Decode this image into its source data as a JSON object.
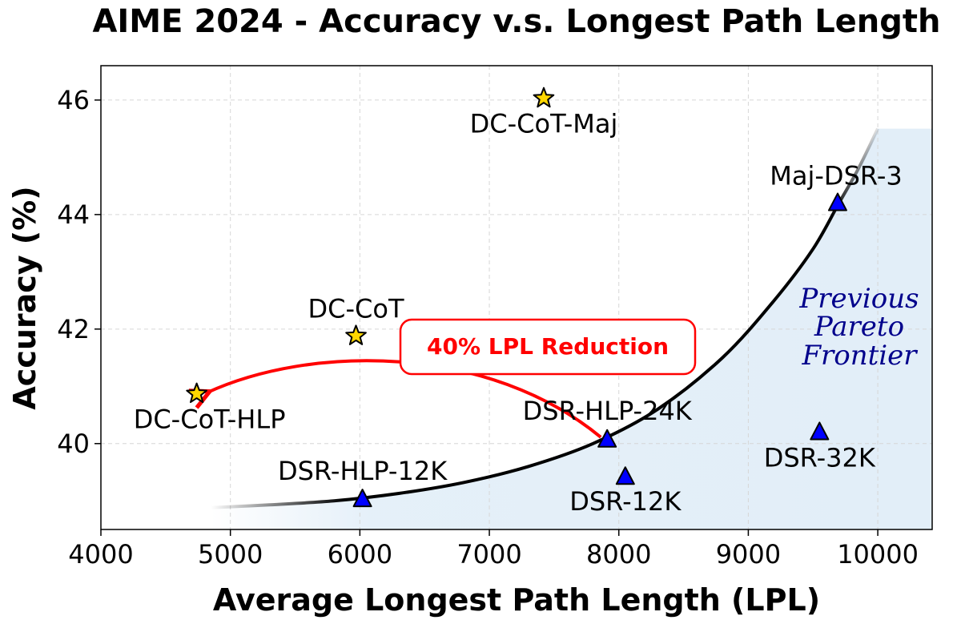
{
  "chart_data": {
    "type": "scatter",
    "title": "AIME 2024 - Accuracy v.s. Longest Path Length",
    "xlabel": "Average Longest Path Length (LPL)",
    "ylabel": "Accuracy (%)",
    "xlim": [
      4000,
      10420
    ],
    "ylim": [
      38.5,
      46.6
    ],
    "xticks": [
      4000,
      5000,
      6000,
      7000,
      8000,
      9000,
      10000
    ],
    "yticks": [
      40,
      42,
      44,
      46
    ],
    "grid": true,
    "series": [
      {
        "name": "DC-CoT",
        "marker": "star",
        "color": "#ffd700",
        "points": [
          {
            "label": "DC-CoT-Maj",
            "x": 7420,
            "y": 46.03
          },
          {
            "label": "DC-CoT",
            "x": 5970,
            "y": 41.88
          },
          {
            "label": "DC-CoT-HLP",
            "x": 4740,
            "y": 40.87
          }
        ]
      },
      {
        "name": "DSR",
        "marker": "triangle",
        "color": "#0000ff",
        "points": [
          {
            "label": "Maj-DSR-3",
            "x": 9690,
            "y": 44.2
          },
          {
            "label": "DSR-HLP-24K",
            "x": 7910,
            "y": 40.07
          },
          {
            "label": "DSR-32K",
            "x": 9550,
            "y": 40.2
          },
          {
            "label": "DSR-12K",
            "x": 8050,
            "y": 39.42
          },
          {
            "label": "DSR-HLP-12K",
            "x": 6020,
            "y": 39.03
          }
        ]
      }
    ],
    "frontier_curve": {
      "x": [
        4850,
        5300,
        5800,
        6300,
        6800,
        7300,
        7800,
        8300,
        8800,
        9200,
        9500,
        9700,
        9850,
        10000
      ],
      "y": [
        38.88,
        38.93,
        39.0,
        39.13,
        39.32,
        39.6,
        40.0,
        40.6,
        41.5,
        42.5,
        43.4,
        44.2,
        44.8,
        45.5
      ]
    },
    "annotations": {
      "callout": "40% LPL Reduction",
      "arrow_from": {
        "x": 7910,
        "y": 40.07
      },
      "arrow_to": {
        "x": 4740,
        "y": 40.87
      },
      "region_lines": [
        "Previous",
        "Pareto",
        "Frontier"
      ]
    }
  }
}
